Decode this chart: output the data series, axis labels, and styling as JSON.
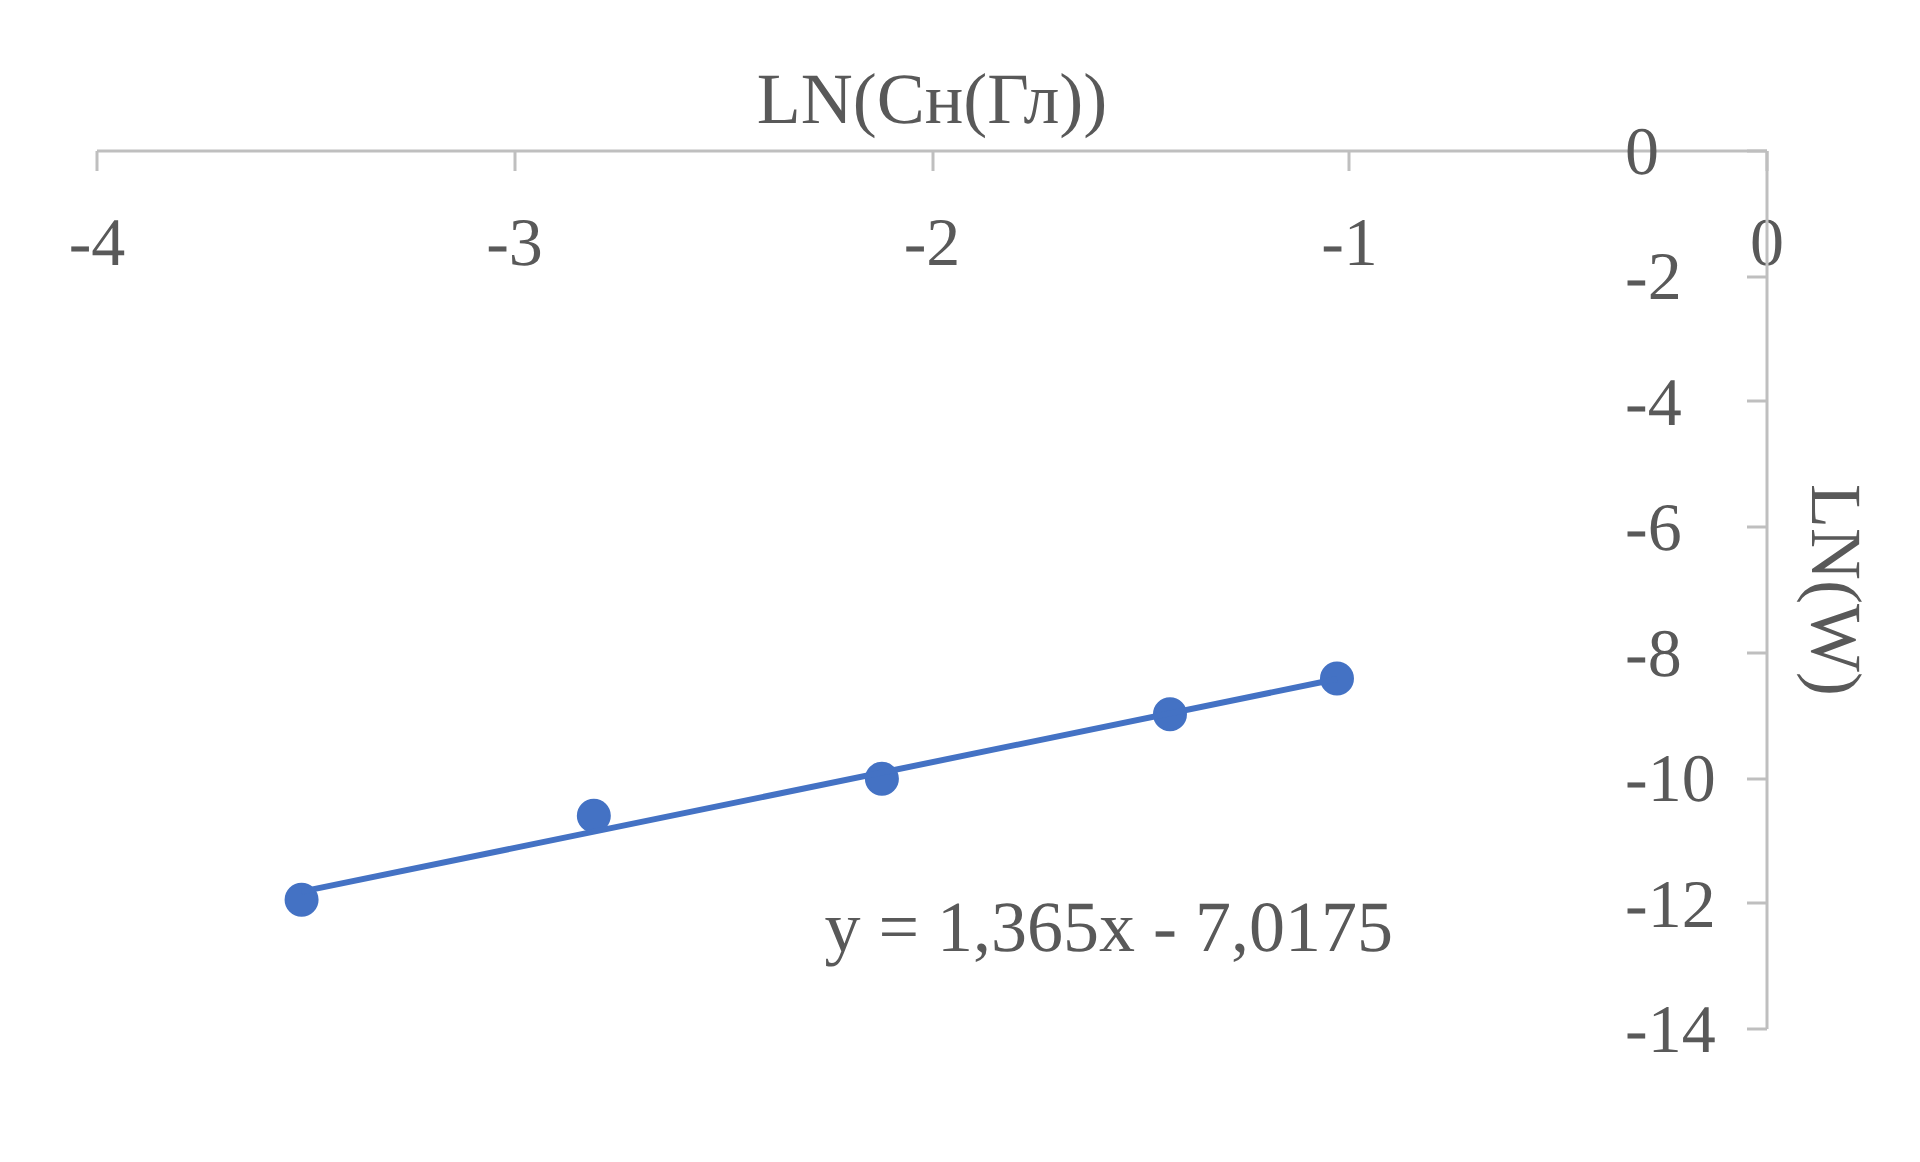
{
  "chart_data": {
    "type": "scatter",
    "xlabel": "LN(Cн(Гл))",
    "ylabel": "LN(W)",
    "xlim": [
      -4,
      0
    ],
    "ylim": [
      -14,
      0
    ],
    "xticks": [
      -4,
      -3,
      -2,
      -1,
      0
    ],
    "yticks": [
      -14,
      -12,
      -10,
      -8,
      -6,
      -4,
      -2,
      0
    ],
    "grid": false,
    "marker": "circle",
    "series": [
      {
        "color": "#4472c4",
        "x": [
          -3.51,
          -2.81,
          -2.12,
          -1.43,
          -1.03
        ],
        "values": [
          -11.94,
          -10.6,
          -10.01,
          -8.98,
          -8.41
        ]
      },
      {
        "type": "line",
        "color": "#4472c4",
        "marker": "none",
        "line_style": "solid",
        "x": [
          -3.51,
          -1.03
        ],
        "values": [
          -11.81,
          -8.42
        ]
      }
    ],
    "annotations": [
      "y = 1,365x - 7,0175"
    ]
  }
}
